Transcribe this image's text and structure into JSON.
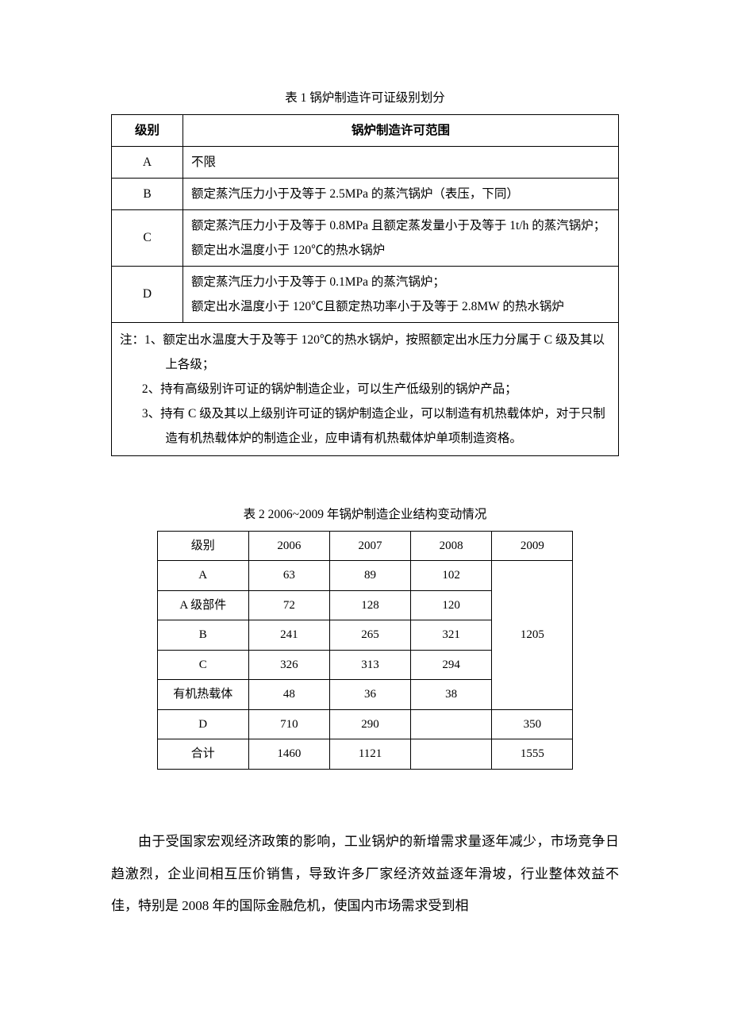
{
  "table1": {
    "caption": "表 1  锅炉制造许可证级别划分",
    "header": {
      "level": "级别",
      "scope": "锅炉制造许可范围"
    },
    "rows": [
      {
        "level": "A",
        "desc": "不限"
      },
      {
        "level": "B",
        "desc": "额定蒸汽压力小于及等于 2.5MPa 的蒸汽锅炉（表压，下同）"
      },
      {
        "level": "C",
        "desc": "额定蒸汽压力小于及等于 0.8MPa 且额定蒸发量小于及等于 1t/h 的蒸汽锅炉；额定出水温度小于 120℃的热水锅炉"
      },
      {
        "level": "D",
        "desc": "额定蒸汽压力小于及等于 0.1MPa 的蒸汽锅炉；\n额定出水温度小于 120℃且额定热功率小于及等于 2.8MW 的热水锅炉"
      }
    ],
    "notes": [
      "注：1、额定出水温度大于及等于 120℃的热水锅炉，按照额定出水压力分属于 C 级及其以上各级；",
      "2、持有高级别许可证的锅炉制造企业，可以生产低级别的锅炉产品；",
      "3、持有 C 级及其以上级别许可证的锅炉制造企业，可以制造有机热载体炉，对于只制造有机热载体炉的制造企业，应申请有机热载体炉单项制造资格。"
    ]
  },
  "table2": {
    "caption": "表 2 2006~2009 年锅炉制造企业结构变动情况",
    "columns": [
      "级别",
      "2006",
      "2007",
      "2008",
      "2009"
    ],
    "rows": [
      [
        "A",
        "63",
        "89",
        "102"
      ],
      [
        "A 级部件",
        "72",
        "128",
        "120"
      ],
      [
        "B",
        "241",
        "265",
        "321"
      ],
      [
        "C",
        "326",
        "313",
        "294"
      ],
      [
        "有机热载体",
        "48",
        "36",
        "38"
      ]
    ],
    "merged_2009": "1205",
    "row_d": [
      "D",
      "710",
      "290",
      "",
      "350"
    ],
    "row_total": [
      "合计",
      "1460",
      "1121",
      "",
      "1555"
    ]
  },
  "paragraph": "由于受国家宏观经济政策的影响，工业锅炉的新增需求量逐年减少，市场竞争日趋激烈，企业间相互压价销售，导致许多厂家经济效益逐年滑坡，行业整体效益不佳，特别是 2008 年的国际金融危机，使国内市场需求受到相"
}
